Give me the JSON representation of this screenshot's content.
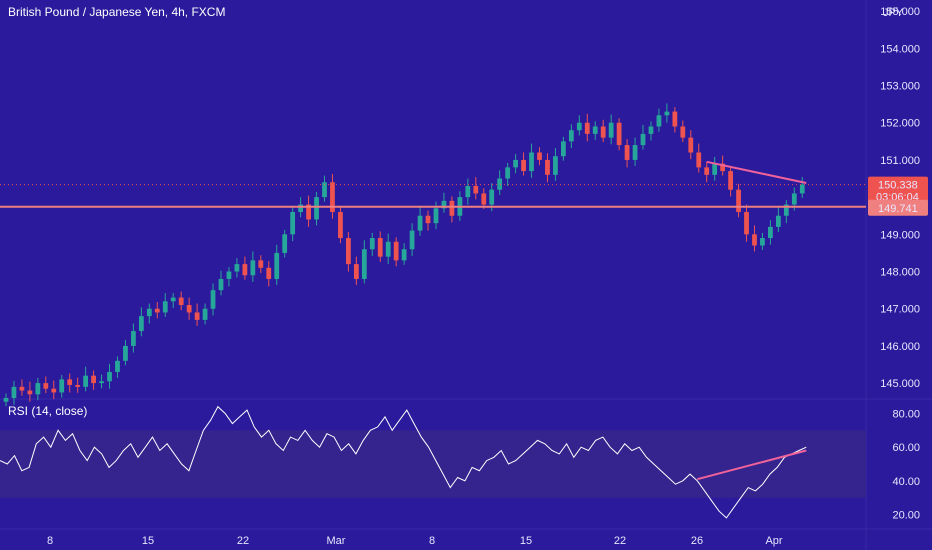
{
  "colors": {
    "background": "#2b1a9b",
    "up": "#27a69a",
    "down": "#ef5350",
    "pane_band": "#36248e",
    "rsi_line": "#ffffff",
    "drawing": "#f0629a",
    "horizontal_line": "#f08080",
    "price_label_bg": "#ef5350",
    "grid": "#3a2aa8",
    "axis_text": "#e8e6ff"
  },
  "chart_data": [
    {
      "type": "candlestick",
      "title": "British Pound / Japanese Yen, 4h, FXCM",
      "currency": "JPY",
      "y_ticks": [
        "155.000",
        "154.000",
        "153.000",
        "152.000",
        "151.000",
        "149.000",
        "148.000",
        "147.000",
        "146.000",
        "145.000"
      ],
      "ylim": [
        144.6,
        155.3
      ],
      "x_ticks": [
        "8",
        "15",
        "22",
        "Mar",
        "8",
        "15",
        "22",
        "26",
        "Apr"
      ],
      "last_price": {
        "value": "150.338",
        "countdown": "03:06:04"
      },
      "horizontal_line": {
        "value": "149.741"
      },
      "trendline": {
        "from": 150.95,
        "to": 150.38
      },
      "close_path": [
        144.6,
        144.9,
        144.8,
        144.7,
        145.0,
        144.85,
        144.75,
        145.1,
        144.95,
        144.9,
        145.2,
        145.0,
        145.05,
        145.3,
        145.6,
        146.0,
        146.4,
        146.8,
        147.0,
        146.9,
        147.2,
        147.3,
        147.1,
        146.9,
        146.7,
        147.0,
        147.5,
        147.8,
        148.0,
        148.2,
        147.9,
        148.3,
        148.1,
        147.8,
        148.5,
        149.0,
        149.6,
        149.8,
        149.4,
        150.0,
        150.4,
        149.6,
        148.9,
        148.2,
        147.8,
        148.6,
        148.9,
        148.4,
        148.8,
        148.3,
        148.6,
        149.1,
        149.5,
        149.3,
        149.7,
        149.9,
        149.5,
        150.0,
        150.3,
        150.1,
        149.8,
        150.2,
        150.5,
        150.8,
        151.0,
        150.7,
        151.2,
        151.0,
        150.6,
        151.1,
        151.5,
        151.8,
        152.0,
        151.7,
        151.9,
        151.6,
        152.0,
        151.4,
        151.0,
        151.4,
        151.7,
        151.9,
        152.2,
        152.3,
        151.9,
        151.6,
        151.2,
        150.8,
        150.6,
        150.9,
        150.7,
        150.2,
        149.6,
        149.0,
        148.7,
        148.9,
        149.2,
        149.5,
        149.8,
        150.1,
        150.34
      ]
    },
    {
      "type": "line",
      "title": "RSI (14, close)",
      "y_ticks": [
        "80.00",
        "60.00",
        "40.00",
        "20.00"
      ],
      "ylim": [
        12,
        88
      ],
      "band": [
        30,
        70
      ],
      "trendline": {
        "from": 41,
        "to": 58
      },
      "values": [
        52,
        50,
        55,
        46,
        48,
        62,
        66,
        60,
        70,
        64,
        68,
        58,
        52,
        60,
        56,
        48,
        52,
        58,
        62,
        54,
        60,
        66,
        58,
        62,
        56,
        50,
        46,
        58,
        70,
        76,
        84,
        80,
        74,
        78,
        82,
        72,
        66,
        70,
        62,
        58,
        66,
        64,
        70,
        64,
        60,
        68,
        66,
        58,
        62,
        56,
        64,
        70,
        72,
        78,
        70,
        76,
        82,
        74,
        66,
        60,
        52,
        44,
        36,
        42,
        40,
        48,
        46,
        52,
        54,
        58,
        50,
        52,
        56,
        60,
        64,
        62,
        58,
        56,
        62,
        54,
        60,
        58,
        64,
        66,
        60,
        56,
        62,
        58,
        60,
        54,
        50,
        46,
        42,
        38,
        40,
        44,
        40,
        34,
        28,
        22,
        18,
        24,
        30,
        36,
        34,
        38,
        44,
        48,
        54,
        56,
        58,
        60
      ]
    }
  ]
}
